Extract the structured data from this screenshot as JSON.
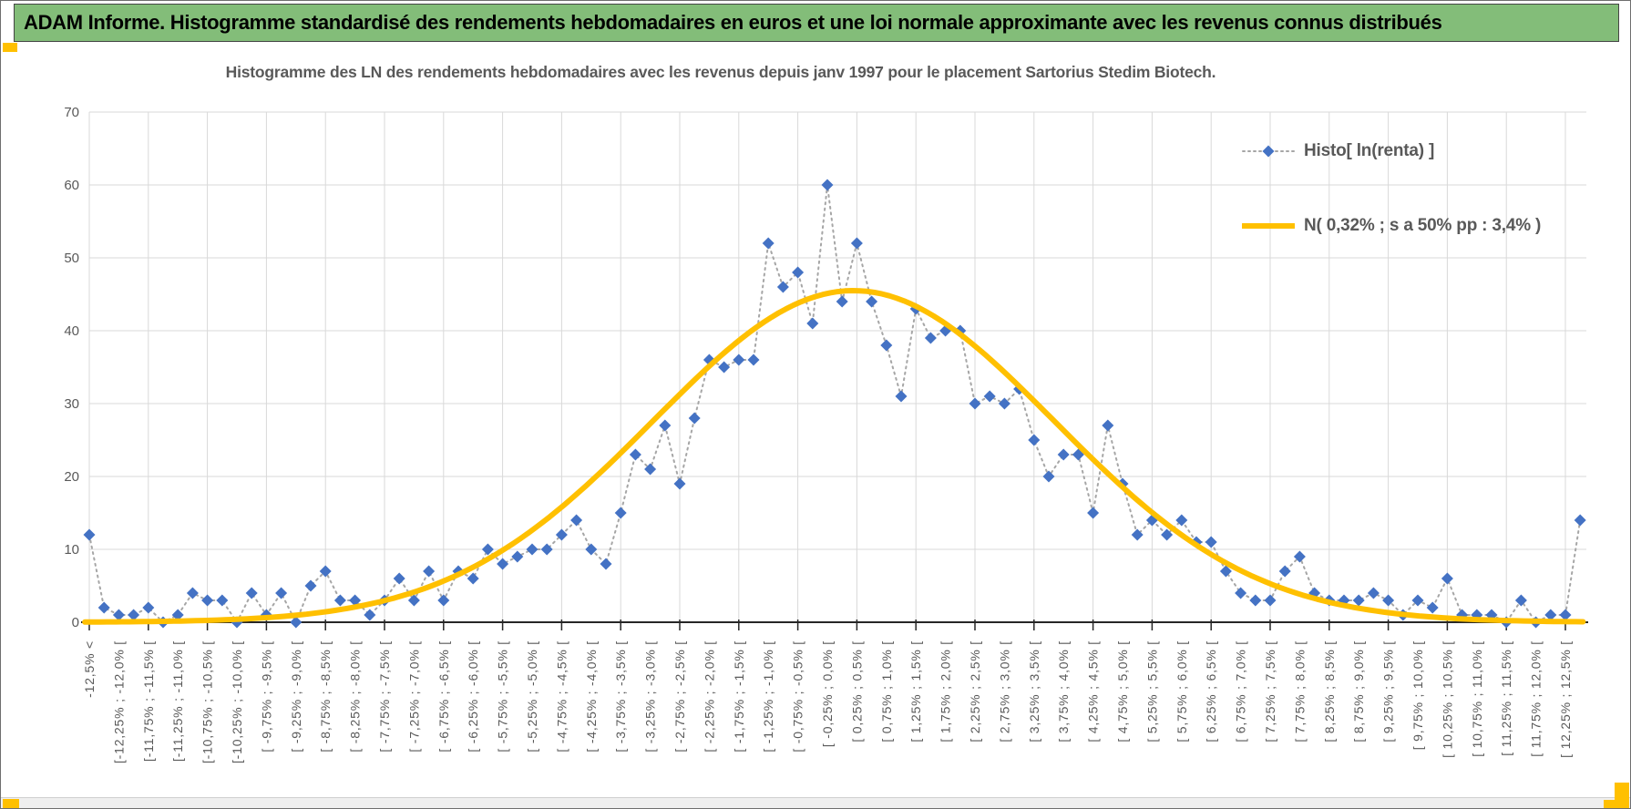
{
  "banner": {
    "title": "ADAM Informe. Histogramme standardisé des rendements hebdomadaires en euros et une loi normale approximante avec les revenus connus distribués"
  },
  "chart": {
    "title": "Histogramme des LN des rendements hebdomadaires avec les revenus depuis janv 1997 pour le placement Sartorius Stedim Biotech."
  },
  "chart_data": {
    "type": "line",
    "title": "Histogramme des LN des rendements hebdomadaires avec les revenus depuis janv 1997 pour le placement Sartorius Stedim Biotech.",
    "xlabel": "",
    "ylabel": "",
    "ylim": [
      0,
      70
    ],
    "y_ticks": [
      "0",
      "10",
      "20",
      "30",
      "40",
      "50",
      "60",
      "70"
    ],
    "grid": true,
    "x_gridline_every_points": 4,
    "label_every_points": 2,
    "bin_width_pct": 0.25,
    "legend_position": "upper-right",
    "bin_labels": [
      "-12,5% <",
      "[-12,25% ; -12,0% [",
      "[-11,75% ; -11,5% [",
      "[-11,25% ; -11,0% [",
      "[-10,75% ; -10,5% [",
      "[-10,25% ; -10,0% [",
      "[ -9,75% ; -9,5% [",
      "[ -9,25% ; -9,0% [",
      "[ -8,75% ; -8,5% [",
      "[ -8,25% ; -8,0% [",
      "[ -7,75% ; -7,5% [",
      "[ -7,25% ; -7,0% [",
      "[ -6,75% ; -6,5% [",
      "[ -6,25% ; -6,0% [",
      "[ -5,75% ; -5,5% [",
      "[ -5,25% ; -5,0% [",
      "[ -4,75% ; -4,5% [",
      "[ -4,25% ; -4,0% [",
      "[ -3,75% ; -3,5% [",
      "[ -3,25% ; -3,0% [",
      "[ -2,75% ; -2,5% [",
      "[ -2,25% ; -2,0% [",
      "[ -1,75% ; -1,5% [",
      "[ -1,25% ; -1,0% [",
      "[ -0,75% ; -0,5% [",
      "[ -0,25% ; 0,0% [",
      "[ 0,25% ; 0,5% [",
      "[ 0,75% ; 1,0% [",
      "[ 1,25% ; 1,5% [",
      "[ 1,75% ; 2,0% [",
      "[ 2,25% ; 2,5% [",
      "[ 2,75% ; 3,0% [",
      "[ 3,25% ; 3,5% [",
      "[ 3,75% ; 4,0% [",
      "[ 4,25% ; 4,5% [",
      "[ 4,75% ; 5,0% [",
      "[ 5,25% ; 5,5% [",
      "[ 5,75% ; 6,0% [",
      "[ 6,25% ; 6,5% [",
      "[ 6,75% ; 7,0% [",
      "[ 7,25% ; 7,5% [",
      "[ 7,75% ; 8,0% [",
      "[ 8,25% ; 8,5% [",
      "[ 8,75% ; 9,0% [",
      "[ 9,25% ; 9,5% [",
      "[ 9,75% ; 10,0% [",
      "[ 10,25% ; 10,5% [",
      "[ 10,75% ; 11,0% [",
      "[ 11,25% ; 11,5% [",
      "[ 11,75% ; 12,0% [",
      "[ 12,25% ; 12,5% ["
    ],
    "values": [
      12,
      2,
      1,
      1,
      2,
      0,
      1,
      4,
      3,
      3,
      0,
      4,
      1,
      4,
      0,
      5,
      7,
      3,
      3,
      1,
      3,
      6,
      3,
      7,
      3,
      7,
      6,
      10,
      8,
      9,
      10,
      10,
      12,
      14,
      10,
      8,
      15,
      23,
      21,
      27,
      19,
      28,
      36,
      35,
      36,
      36,
      52,
      46,
      48,
      41,
      60,
      44,
      52,
      44,
      38,
      31,
      43,
      39,
      40,
      40,
      30,
      31,
      30,
      32,
      25,
      20,
      23,
      23,
      15,
      27,
      19,
      12,
      14,
      12,
      14,
      11,
      11,
      7,
      4,
      3,
      3,
      7,
      9,
      4,
      3,
      3,
      3,
      4,
      3,
      1,
      3,
      2,
      6,
      1,
      1,
      1,
      0,
      3,
      0,
      1,
      1,
      14
    ],
    "normal_curve": {
      "mean_pct": 0.32,
      "sigma_pct": 3.4,
      "peak": 45.5
    },
    "series": [
      {
        "name": "Histo[ ln(renta) ]",
        "type": "scatter-dotted",
        "color": "#4472c4",
        "line_color": "#a6a6a6"
      },
      {
        "name": "N( 0,32% ; s a 50% pp : 3,4% )",
        "type": "line",
        "color": "#ffc000"
      }
    ],
    "colors": {
      "accent_green": "#83bd79",
      "accent_orange": "#ffc000",
      "point_blue": "#4472c4",
      "dotted_gray": "#a6a6a6",
      "gridline": "#d9d9d9",
      "axis": "#262626",
      "label_text": "#595959"
    }
  }
}
